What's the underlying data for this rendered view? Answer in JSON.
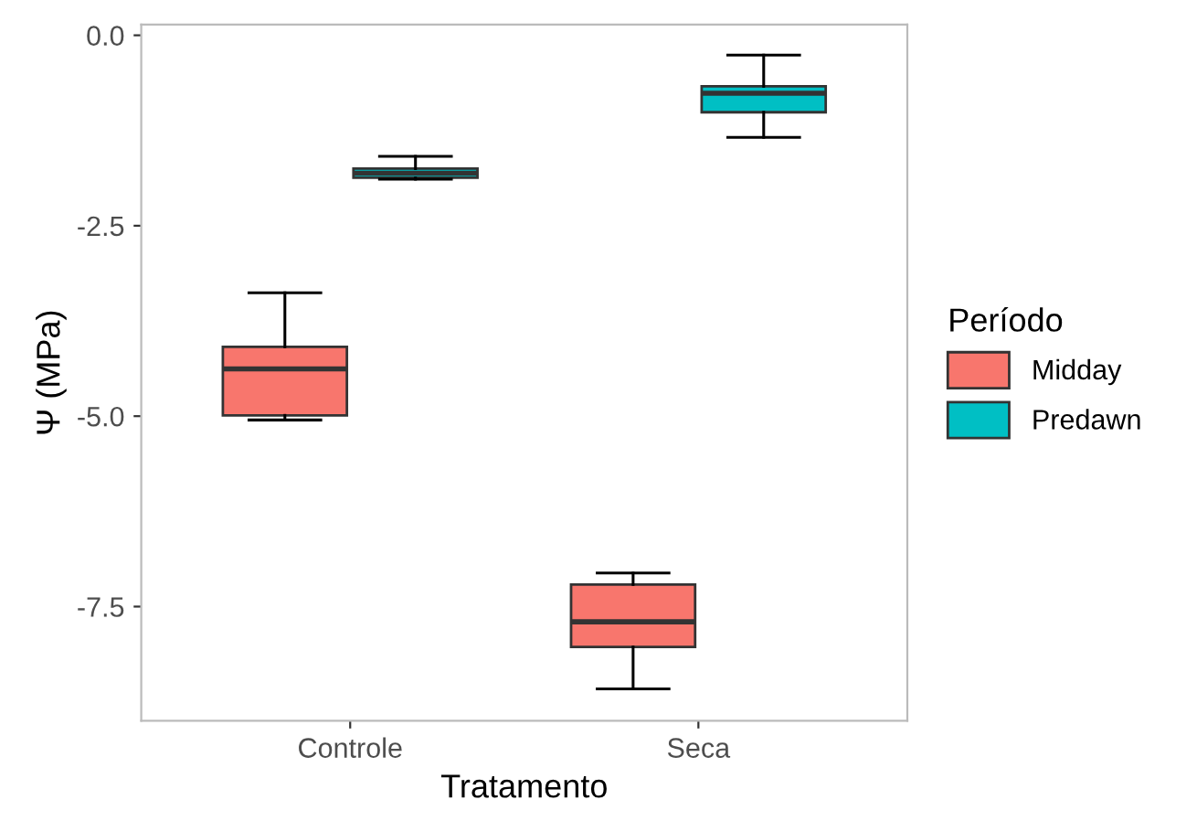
{
  "chart_data": {
    "type": "box",
    "xlabel": "Tratamento",
    "ylabel": "Ψ (MPa)",
    "legend_title": "Período",
    "categories": [
      "Controle",
      "Seca"
    ],
    "series": [
      {
        "name": "Midday",
        "color": "#f8766d",
        "boxes": [
          {
            "low": -5.05,
            "q1": -4.99,
            "median": -4.38,
            "q3": -4.09,
            "high": -3.38
          },
          {
            "low": -8.58,
            "q1": -8.03,
            "median": -7.7,
            "q3": -7.21,
            "high": -7.06
          }
        ]
      },
      {
        "name": "Predawn",
        "color": "#00bfc4",
        "boxes": [
          {
            "low": -1.89,
            "q1": -1.87,
            "median": -1.81,
            "q3": -1.75,
            "high": -1.59
          },
          {
            "low": -1.34,
            "q1": -1.01,
            "median": -0.76,
            "q3": -0.67,
            "high": -0.26
          }
        ]
      }
    ],
    "ylim": [
      -9.0,
      0.14
    ],
    "yticks": [
      {
        "value": 0,
        "label": "0.0"
      },
      -2.5,
      {
        "value": -5,
        "label": "-5.0"
      },
      -7.5
    ],
    "grid": false,
    "legend": "right"
  }
}
